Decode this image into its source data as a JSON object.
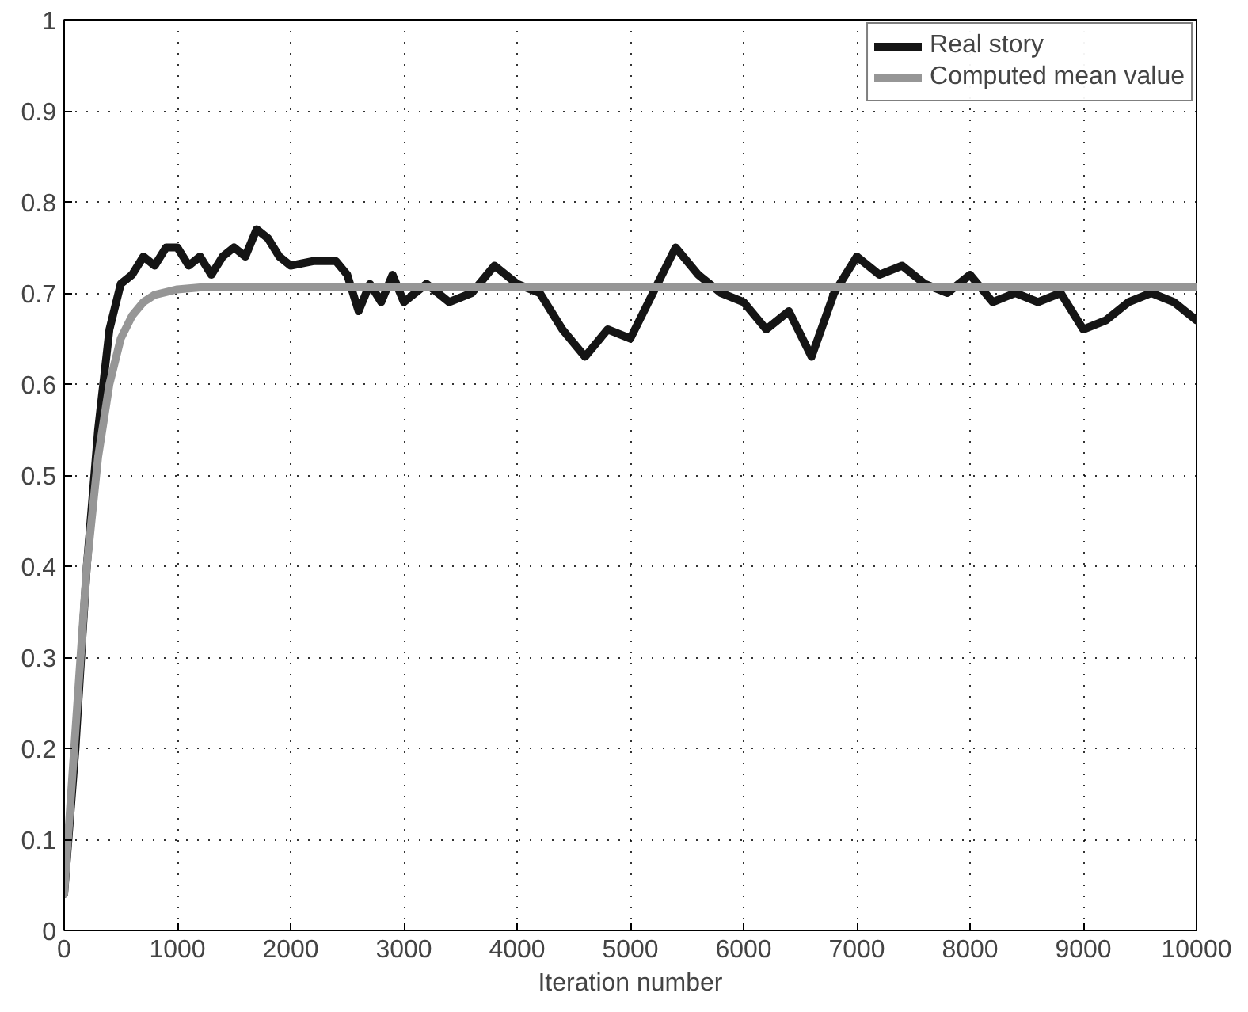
{
  "chart_data": {
    "type": "line",
    "xlabel": "Iteration number",
    "xlim": [
      0,
      10000
    ],
    "xticks": [
      0,
      1000,
      2000,
      3000,
      4000,
      5000,
      6000,
      7000,
      8000,
      9000,
      10000
    ],
    "ylim": [
      0,
      1
    ],
    "yticks": [
      0,
      0.1,
      0.2,
      0.3,
      0.4,
      0.5,
      0.6,
      0.7,
      0.8,
      0.9,
      1
    ],
    "grid": true,
    "legend": "top right",
    "line_style": "solid",
    "marker": "none",
    "series": [
      {
        "name": "Real story",
        "color": "#151515",
        "x": [
          0,
          100,
          200,
          300,
          400,
          500,
          600,
          700,
          800,
          900,
          1000,
          1100,
          1200,
          1300,
          1400,
          1500,
          1600,
          1700,
          1800,
          1900,
          2000,
          2200,
          2400,
          2500,
          2600,
          2700,
          2800,
          2900,
          3000,
          3200,
          3400,
          3600,
          3800,
          4000,
          4200,
          4400,
          4600,
          4800,
          5000,
          5200,
          5400,
          5600,
          5800,
          6000,
          6200,
          6400,
          6600,
          6800,
          7000,
          7200,
          7400,
          7600,
          7800,
          8000,
          8200,
          8400,
          8600,
          8800,
          9000,
          9200,
          9400,
          9600,
          9800,
          10000
        ],
        "values": [
          0.04,
          0.2,
          0.4,
          0.55,
          0.66,
          0.71,
          0.72,
          0.74,
          0.73,
          0.75,
          0.75,
          0.73,
          0.74,
          0.72,
          0.74,
          0.75,
          0.74,
          0.77,
          0.76,
          0.74,
          0.73,
          0.735,
          0.735,
          0.72,
          0.68,
          0.71,
          0.69,
          0.72,
          0.69,
          0.71,
          0.69,
          0.7,
          0.73,
          0.71,
          0.7,
          0.66,
          0.63,
          0.66,
          0.65,
          0.7,
          0.75,
          0.72,
          0.7,
          0.69,
          0.66,
          0.68,
          0.63,
          0.7,
          0.74,
          0.72,
          0.73,
          0.71,
          0.7,
          0.72,
          0.69,
          0.7,
          0.69,
          0.7,
          0.66,
          0.67,
          0.69,
          0.7,
          0.69,
          0.67
        ]
      },
      {
        "name": "Computed mean value",
        "color": "#969696",
        "x": [
          0,
          100,
          200,
          300,
          400,
          500,
          600,
          700,
          800,
          1000,
          1200,
          10000
        ],
        "values": [
          0.04,
          0.22,
          0.4,
          0.52,
          0.6,
          0.65,
          0.675,
          0.69,
          0.698,
          0.704,
          0.706,
          0.706
        ]
      }
    ]
  }
}
